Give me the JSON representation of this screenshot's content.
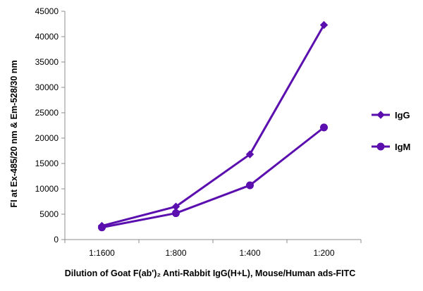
{
  "chart_data": {
    "type": "line",
    "categories": [
      "1:1600",
      "1:800",
      "1:400",
      "1:200"
    ],
    "series": [
      {
        "name": "IgG",
        "marker": "diamond",
        "values": [
          2700,
          6500,
          16800,
          42300
        ]
      },
      {
        "name": "IgM",
        "marker": "circle",
        "values": [
          2400,
          5200,
          10700,
          22100
        ]
      }
    ],
    "title": "",
    "xlabel": "Dilution of Goat F(ab')₂ Anti-Rabbit IgG(H+L), Mouse/Human ads-FITC",
    "ylabel": "FI at Ex-485/20 nm & Em-528/30 nm",
    "ylim": [
      0,
      45000
    ],
    "yticks": [
      "0",
      "5000",
      "10000",
      "15000",
      "20000",
      "25000",
      "30000",
      "35000",
      "40000",
      "45000"
    ],
    "grid": false,
    "legend_position": "right",
    "colors": {
      "series": "#5a0fae",
      "axis": "#8c8c8c"
    }
  }
}
